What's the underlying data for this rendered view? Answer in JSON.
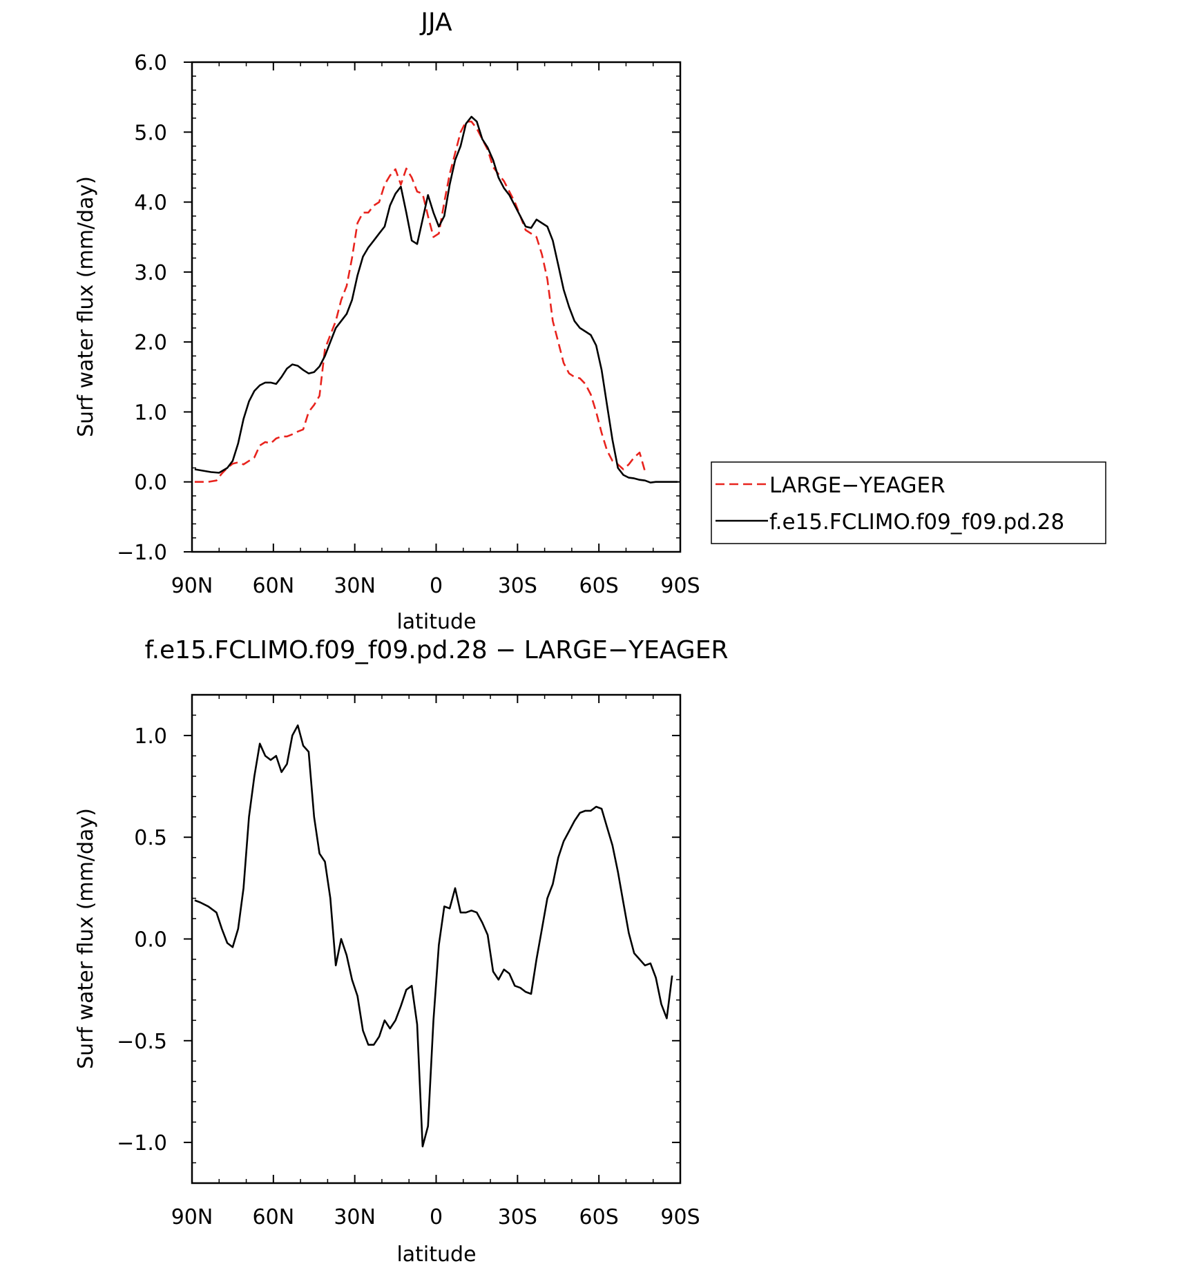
{
  "chart_data": [
    {
      "type": "line",
      "title": "JJA",
      "xlabel": "latitude",
      "ylabel": "Surf water flux (mm/day)",
      "xlim": [
        90,
        -90
      ],
      "ylim": [
        -1.0,
        6.0
      ],
      "xticks": [
        90,
        60,
        30,
        0,
        -30,
        -60,
        -90
      ],
      "xtick_labels": [
        "90N",
        "60N",
        "30N",
        "0",
        "30S",
        "60S",
        "90S"
      ],
      "yticks": [
        -1.0,
        0.0,
        1.0,
        2.0,
        3.0,
        4.0,
        5.0,
        6.0
      ],
      "ytick_labels": [
        "−1.0",
        "0.0",
        "1.0",
        "2.0",
        "3.0",
        "4.0",
        "5.0",
        "6.0"
      ],
      "legend": {
        "placement": "outside-right"
      },
      "series": [
        {
          "name": "LARGE−YEAGER",
          "color": "#e8231d",
          "dash": "dashed",
          "points": [
            [
              89,
              0.0
            ],
            [
              84,
              0.0
            ],
            [
              81,
              0.02
            ],
            [
              79,
              0.12
            ],
            [
              77,
              0.2
            ],
            [
              75,
              0.26
            ],
            [
              73,
              0.28
            ],
            [
              71,
              0.25
            ],
            [
              69,
              0.3
            ],
            [
              67,
              0.35
            ],
            [
              65,
              0.52
            ],
            [
              63,
              0.57
            ],
            [
              61,
              0.55
            ],
            [
              59,
              0.62
            ],
            [
              57,
              0.65
            ],
            [
              55,
              0.65
            ],
            [
              53,
              0.68
            ],
            [
              51,
              0.72
            ],
            [
              49,
              0.75
            ],
            [
              47,
              1.0
            ],
            [
              45,
              1.1
            ],
            [
              43,
              1.23
            ],
            [
              41,
              1.9
            ],
            [
              39,
              2.1
            ],
            [
              37,
              2.3
            ],
            [
              35,
              2.6
            ],
            [
              33,
              2.8
            ],
            [
              31,
              3.2
            ],
            [
              29,
              3.7
            ],
            [
              27,
              3.85
            ],
            [
              25,
              3.85
            ],
            [
              23,
              3.95
            ],
            [
              21,
              4.0
            ],
            [
              19,
              4.25
            ],
            [
              17,
              4.38
            ],
            [
              15,
              4.47
            ],
            [
              13,
              4.25
            ],
            [
              11,
              4.48
            ],
            [
              9,
              4.35
            ],
            [
              7,
              4.15
            ],
            [
              5,
              4.12
            ],
            [
              3,
              3.8
            ],
            [
              1,
              3.5
            ],
            [
              -1,
              3.55
            ],
            [
              -3,
              4.0
            ],
            [
              -5,
              4.4
            ],
            [
              -7,
              4.7
            ],
            [
              -9,
              5.0
            ],
            [
              -11,
              5.15
            ],
            [
              -13,
              5.15
            ],
            [
              -15,
              5.05
            ],
            [
              -17,
              4.9
            ],
            [
              -19,
              4.75
            ],
            [
              -21,
              4.5
            ],
            [
              -23,
              4.4
            ],
            [
              -25,
              4.3
            ],
            [
              -27,
              4.15
            ],
            [
              -29,
              4.0
            ],
            [
              -31,
              3.8
            ],
            [
              -33,
              3.6
            ],
            [
              -35,
              3.55
            ],
            [
              -37,
              3.5
            ],
            [
              -39,
              3.25
            ],
            [
              -41,
              2.9
            ],
            [
              -43,
              2.3
            ],
            [
              -45,
              2.0
            ],
            [
              -47,
              1.7
            ],
            [
              -49,
              1.55
            ],
            [
              -51,
              1.5
            ],
            [
              -53,
              1.48
            ],
            [
              -55,
              1.4
            ],
            [
              -57,
              1.25
            ],
            [
              -59,
              1.0
            ],
            [
              -61,
              0.7
            ],
            [
              -63,
              0.45
            ],
            [
              -65,
              0.3
            ],
            [
              -67,
              0.25
            ],
            [
              -69,
              0.18
            ],
            [
              -71,
              0.25
            ],
            [
              -73,
              0.35
            ],
            [
              -75,
              0.42
            ],
            [
              -77,
              0.15
            ]
          ]
        },
        {
          "name": "f.e15.FCLIMO.f09_f09.pd.28",
          "color": "#000000",
          "dash": "solid",
          "points": [
            [
              89,
              0.18
            ],
            [
              86,
              0.16
            ],
            [
              83,
              0.14
            ],
            [
              80,
              0.13
            ],
            [
              77,
              0.2
            ],
            [
              75,
              0.3
            ],
            [
              73,
              0.55
            ],
            [
              71,
              0.9
            ],
            [
              69,
              1.15
            ],
            [
              67,
              1.3
            ],
            [
              65,
              1.38
            ],
            [
              63,
              1.42
            ],
            [
              61,
              1.42
            ],
            [
              59,
              1.4
            ],
            [
              57,
              1.5
            ],
            [
              55,
              1.62
            ],
            [
              53,
              1.68
            ],
            [
              51,
              1.66
            ],
            [
              49,
              1.6
            ],
            [
              47,
              1.55
            ],
            [
              45,
              1.57
            ],
            [
              43,
              1.65
            ],
            [
              41,
              1.8
            ],
            [
              39,
              2.0
            ],
            [
              37,
              2.2
            ],
            [
              35,
              2.3
            ],
            [
              33,
              2.4
            ],
            [
              31,
              2.6
            ],
            [
              29,
              2.95
            ],
            [
              27,
              3.22
            ],
            [
              25,
              3.35
            ],
            [
              23,
              3.45
            ],
            [
              21,
              3.55
            ],
            [
              19,
              3.65
            ],
            [
              17,
              3.95
            ],
            [
              15,
              4.12
            ],
            [
              13,
              4.22
            ],
            [
              11,
              3.85
            ],
            [
              9,
              3.45
            ],
            [
              7,
              3.4
            ],
            [
              5,
              3.75
            ],
            [
              3,
              4.1
            ],
            [
              1,
              3.85
            ],
            [
              -1,
              3.65
            ],
            [
              -3,
              3.8
            ],
            [
              -5,
              4.25
            ],
            [
              -7,
              4.6
            ],
            [
              -9,
              4.8
            ],
            [
              -11,
              5.12
            ],
            [
              -13,
              5.22
            ],
            [
              -15,
              5.15
            ],
            [
              -17,
              4.9
            ],
            [
              -19,
              4.78
            ],
            [
              -21,
              4.6
            ],
            [
              -23,
              4.35
            ],
            [
              -25,
              4.2
            ],
            [
              -27,
              4.1
            ],
            [
              -29,
              3.95
            ],
            [
              -31,
              3.8
            ],
            [
              -33,
              3.65
            ],
            [
              -35,
              3.63
            ],
            [
              -37,
              3.75
            ],
            [
              -39,
              3.7
            ],
            [
              -41,
              3.65
            ],
            [
              -43,
              3.45
            ],
            [
              -45,
              3.1
            ],
            [
              -47,
              2.75
            ],
            [
              -49,
              2.5
            ],
            [
              -51,
              2.3
            ],
            [
              -53,
              2.2
            ],
            [
              -55,
              2.15
            ],
            [
              -57,
              2.1
            ],
            [
              -59,
              1.95
            ],
            [
              -61,
              1.6
            ],
            [
              -63,
              1.1
            ],
            [
              -65,
              0.6
            ],
            [
              -67,
              0.2
            ],
            [
              -69,
              0.1
            ],
            [
              -71,
              0.06
            ],
            [
              -73,
              0.05
            ],
            [
              -75,
              0.03
            ],
            [
              -77,
              0.02
            ],
            [
              -79,
              -0.01
            ],
            [
              -81,
              0.0
            ],
            [
              -89,
              0.0
            ]
          ]
        }
      ]
    },
    {
      "type": "line",
      "title": "f.e15.FCLIMO.f09_f09.pd.28 − LARGE−YEAGER",
      "xlabel": "latitude",
      "ylabel": "Surf water flux (mm/day)",
      "xlim": [
        90,
        -90
      ],
      "ylim": [
        -1.2,
        1.2
      ],
      "xticks": [
        90,
        60,
        30,
        0,
        -30,
        -60,
        -90
      ],
      "xtick_labels": [
        "90N",
        "60N",
        "30N",
        "0",
        "30S",
        "60S",
        "90S"
      ],
      "yticks": [
        -1.0,
        -0.5,
        0.0,
        0.5,
        1.0
      ],
      "ytick_labels": [
        "−1.0",
        "−0.5",
        "0.0",
        "0.5",
        "1.0"
      ],
      "series": [
        {
          "color": "#000000",
          "dash": "solid",
          "points": [
            [
              89,
              0.19
            ],
            [
              87,
              0.18
            ],
            [
              84,
              0.16
            ],
            [
              81,
              0.13
            ],
            [
              79,
              0.05
            ],
            [
              77,
              -0.02
            ],
            [
              75,
              -0.04
            ],
            [
              73,
              0.05
            ],
            [
              71,
              0.25
            ],
            [
              69,
              0.6
            ],
            [
              67,
              0.8
            ],
            [
              65,
              0.96
            ],
            [
              63,
              0.9
            ],
            [
              61,
              0.88
            ],
            [
              59,
              0.9
            ],
            [
              57,
              0.82
            ],
            [
              55,
              0.86
            ],
            [
              53,
              1.0
            ],
            [
              51,
              1.05
            ],
            [
              49,
              0.95
            ],
            [
              47,
              0.92
            ],
            [
              45,
              0.6
            ],
            [
              43,
              0.42
            ],
            [
              41,
              0.38
            ],
            [
              39,
              0.2
            ],
            [
              37,
              -0.13
            ],
            [
              35,
              0.0
            ],
            [
              33,
              -0.08
            ],
            [
              31,
              -0.2
            ],
            [
              29,
              -0.28
            ],
            [
              27,
              -0.45
            ],
            [
              25,
              -0.52
            ],
            [
              23,
              -0.52
            ],
            [
              21,
              -0.48
            ],
            [
              19,
              -0.4
            ],
            [
              17,
              -0.44
            ],
            [
              15,
              -0.4
            ],
            [
              13,
              -0.33
            ],
            [
              11,
              -0.25
            ],
            [
              9,
              -0.23
            ],
            [
              7,
              -0.42
            ],
            [
              5,
              -1.02
            ],
            [
              3,
              -0.92
            ],
            [
              1,
              -0.4
            ],
            [
              -1,
              -0.03
            ],
            [
              -3,
              0.16
            ],
            [
              -5,
              0.15
            ],
            [
              -7,
              0.25
            ],
            [
              -9,
              0.13
            ],
            [
              -11,
              0.13
            ],
            [
              -13,
              0.14
            ],
            [
              -15,
              0.13
            ],
            [
              -17,
              0.08
            ],
            [
              -19,
              0.02
            ],
            [
              -21,
              -0.16
            ],
            [
              -23,
              -0.2
            ],
            [
              -25,
              -0.15
            ],
            [
              -27,
              -0.17
            ],
            [
              -29,
              -0.23
            ],
            [
              -31,
              -0.24
            ],
            [
              -33,
              -0.26
            ],
            [
              -35,
              -0.27
            ],
            [
              -37,
              -0.1
            ],
            [
              -39,
              0.05
            ],
            [
              -41,
              0.2
            ],
            [
              -43,
              0.27
            ],
            [
              -45,
              0.4
            ],
            [
              -47,
              0.48
            ],
            [
              -49,
              0.53
            ],
            [
              -51,
              0.58
            ],
            [
              -53,
              0.62
            ],
            [
              -55,
              0.63
            ],
            [
              -57,
              0.63
            ],
            [
              -59,
              0.65
            ],
            [
              -61,
              0.64
            ],
            [
              -63,
              0.55
            ],
            [
              -65,
              0.46
            ],
            [
              -67,
              0.33
            ],
            [
              -69,
              0.18
            ],
            [
              -71,
              0.03
            ],
            [
              -73,
              -0.07
            ],
            [
              -75,
              -0.1
            ],
            [
              -77,
              -0.13
            ],
            [
              -79,
              -0.12
            ],
            [
              -81,
              -0.19
            ],
            [
              -83,
              -0.32
            ],
            [
              -85,
              -0.39
            ],
            [
              -87,
              -0.18
            ]
          ]
        }
      ]
    }
  ]
}
